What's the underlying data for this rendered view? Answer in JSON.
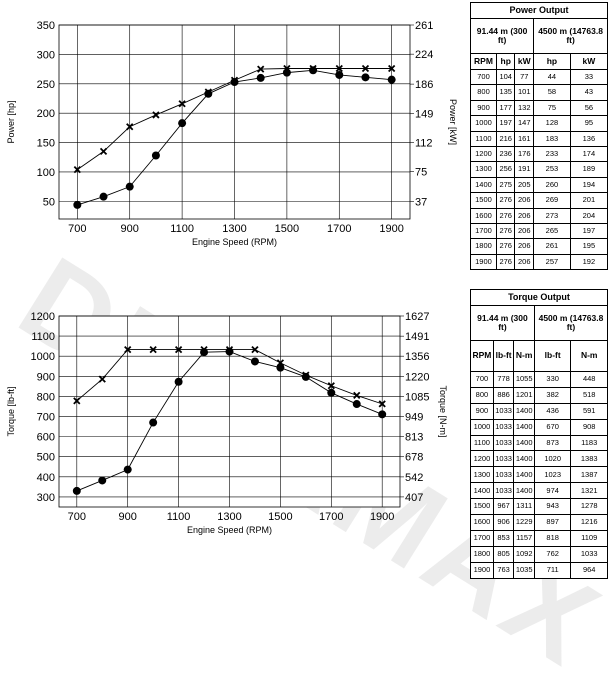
{
  "watermark": "DURAMAX",
  "power_table": {
    "title": "Power Output",
    "cond_left": "91.44 m (300 ft)",
    "cond_right": "4500 m (14763.8 ft)",
    "headers": [
      "RPM",
      "hp",
      "kW",
      "hp",
      "kW"
    ],
    "rows": [
      [
        "700",
        "104",
        "77",
        "44",
        "33"
      ],
      [
        "800",
        "135",
        "101",
        "58",
        "43"
      ],
      [
        "900",
        "177",
        "132",
        "75",
        "56"
      ],
      [
        "1000",
        "197",
        "147",
        "128",
        "95"
      ],
      [
        "1100",
        "216",
        "161",
        "183",
        "136"
      ],
      [
        "1200",
        "236",
        "176",
        "233",
        "174"
      ],
      [
        "1300",
        "256",
        "191",
        "253",
        "189"
      ],
      [
        "1400",
        "275",
        "205",
        "260",
        "194"
      ],
      [
        "1500",
        "276",
        "206",
        "269",
        "201"
      ],
      [
        "1600",
        "276",
        "206",
        "273",
        "204"
      ],
      [
        "1700",
        "276",
        "206",
        "265",
        "197"
      ],
      [
        "1800",
        "276",
        "206",
        "261",
        "195"
      ],
      [
        "1900",
        "276",
        "206",
        "257",
        "192"
      ]
    ]
  },
  "torque_table": {
    "title": "Torque Output",
    "cond_left": "91.44 m (300 ft)",
    "cond_right": "4500 m (14763.8 ft)",
    "headers": [
      "RPM",
      "lb-ft",
      "N-m",
      "lb-ft",
      "N-m"
    ],
    "rows": [
      [
        "700",
        "778",
        "1055",
        "330",
        "448"
      ],
      [
        "800",
        "886",
        "1201",
        "382",
        "518"
      ],
      [
        "900",
        "1033",
        "1400",
        "436",
        "591"
      ],
      [
        "1000",
        "1033",
        "1400",
        "670",
        "908"
      ],
      [
        "1100",
        "1033",
        "1400",
        "873",
        "1183"
      ],
      [
        "1200",
        "1033",
        "1400",
        "1020",
        "1383"
      ],
      [
        "1300",
        "1033",
        "1400",
        "1023",
        "1387"
      ],
      [
        "1400",
        "1033",
        "1400",
        "974",
        "1321"
      ],
      [
        "1500",
        "967",
        "1311",
        "943",
        "1278"
      ],
      [
        "1600",
        "906",
        "1229",
        "897",
        "1216"
      ],
      [
        "1700",
        "853",
        "1157",
        "818",
        "1109"
      ],
      [
        "1800",
        "805",
        "1092",
        "762",
        "1033"
      ],
      [
        "1900",
        "763",
        "1035",
        "711",
        "964"
      ]
    ]
  },
  "chart_data": [
    {
      "type": "line",
      "xlabel": "Engine Speed (RPM)",
      "ylabel": "Power [hp]",
      "y2label": "Power [kW]",
      "xlim": [
        630,
        1970
      ],
      "ylim": [
        20,
        350
      ],
      "xticks": [
        700,
        900,
        1100,
        1300,
        1500,
        1700,
        1900
      ],
      "yticks": [
        50,
        100,
        150,
        200,
        250,
        300,
        350
      ],
      "y2ticks": [
        {
          "value": 37,
          "label": "37"
        },
        {
          "value": 75,
          "label": "75"
        },
        {
          "value": 112,
          "label": "112"
        },
        {
          "value": 149,
          "label": "149"
        },
        {
          "value": 186,
          "label": "186"
        },
        {
          "value": 224,
          "label": "224"
        },
        {
          "value": 261,
          "label": "261"
        }
      ],
      "y2_factor": 0.7457,
      "grid": true,
      "x": [
        700,
        800,
        900,
        1000,
        1100,
        1200,
        1300,
        1400,
        1500,
        1600,
        1700,
        1800,
        1900
      ],
      "series": [
        {
          "marker": "x",
          "values": [
            104,
            135,
            177,
            197,
            216,
            236,
            256,
            275,
            276,
            276,
            276,
            276,
            276
          ]
        },
        {
          "marker": "circle",
          "values": [
            44,
            58,
            75,
            128,
            183,
            233,
            253,
            260,
            269,
            273,
            265,
            261,
            257
          ]
        }
      ]
    },
    {
      "type": "line",
      "xlabel": "Engine Speed (RPM)",
      "ylabel": "Torque [lb-ft]",
      "y2label": "Torque [N-m]",
      "xlim": [
        630,
        1970
      ],
      "ylim": [
        250,
        1200
      ],
      "xticks": [
        700,
        900,
        1100,
        1300,
        1500,
        1700,
        1900
      ],
      "yticks": [
        300,
        400,
        500,
        600,
        700,
        800,
        900,
        1000,
        1100,
        1200
      ],
      "y2ticks": [
        {
          "value": 407,
          "label": "407"
        },
        {
          "value": 542,
          "label": "542"
        },
        {
          "value": 678,
          "label": "678"
        },
        {
          "value": 813,
          "label": "813"
        },
        {
          "value": 949,
          "label": "949"
        },
        {
          "value": 1085,
          "label": "1085"
        },
        {
          "value": 1220,
          "label": "1220"
        },
        {
          "value": 1356,
          "label": "1356"
        },
        {
          "value": 1491,
          "label": "1491"
        },
        {
          "value": 1627,
          "label": "1627"
        }
      ],
      "y2_factor": 1.3558,
      "grid": true,
      "x": [
        700,
        800,
        900,
        1000,
        1100,
        1200,
        1300,
        1400,
        1500,
        1600,
        1700,
        1800,
        1900
      ],
      "series": [
        {
          "marker": "x",
          "values": [
            778,
            886,
            1033,
            1033,
            1033,
            1033,
            1033,
            1033,
            967,
            906,
            853,
            805,
            763
          ]
        },
        {
          "marker": "circle",
          "values": [
            330,
            382,
            436,
            670,
            873,
            1020,
            1023,
            974,
            943,
            897,
            818,
            762,
            711
          ]
        }
      ]
    }
  ]
}
